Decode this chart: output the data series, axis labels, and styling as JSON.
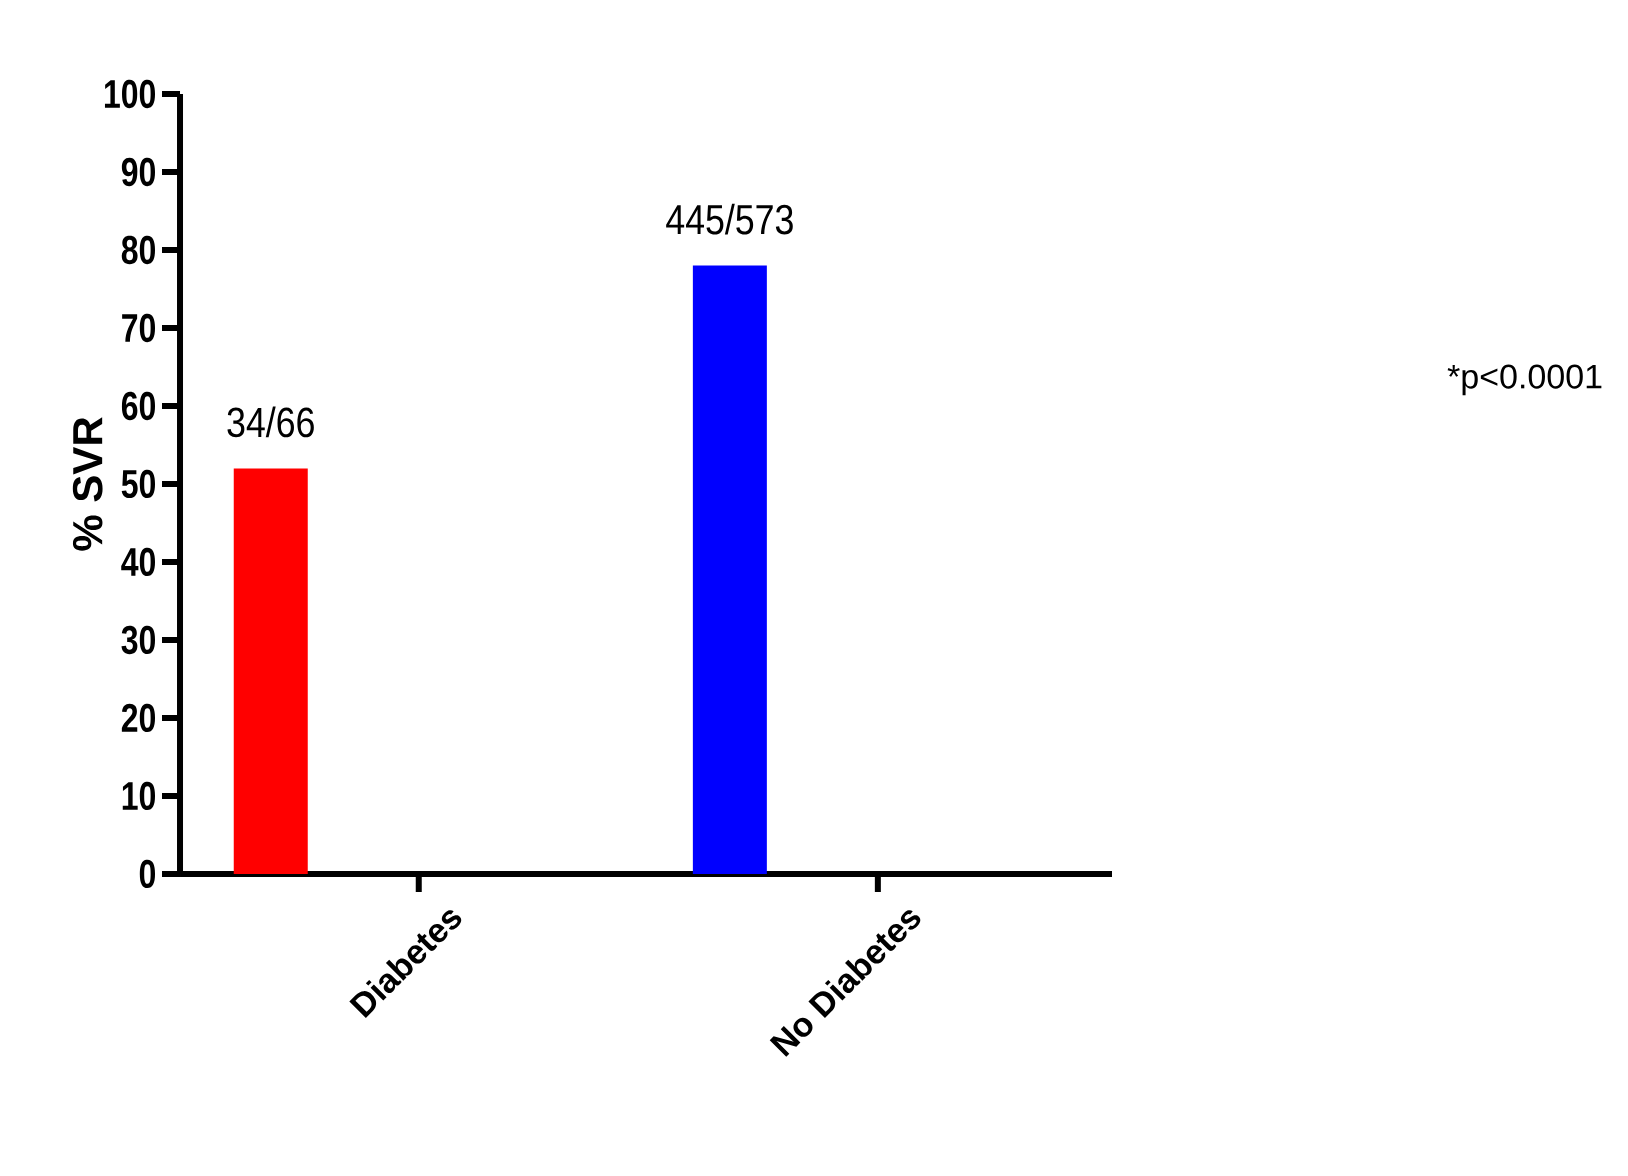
{
  "chart_data": {
    "type": "bar",
    "ylabel": "% SVR",
    "categories": [
      "Diabetes",
      "No Diabetes"
    ],
    "values": [
      52,
      78
    ],
    "colors": [
      "#ff0000",
      "#0000ff"
    ],
    "value_labels": [
      "34/66",
      "445/573"
    ],
    "ylim": [
      0,
      100
    ],
    "yticks": [
      0,
      10,
      20,
      30,
      40,
      50,
      60,
      70,
      80,
      90,
      100
    ],
    "grid": false,
    "annotations": [
      "*p<0.0001"
    ]
  }
}
